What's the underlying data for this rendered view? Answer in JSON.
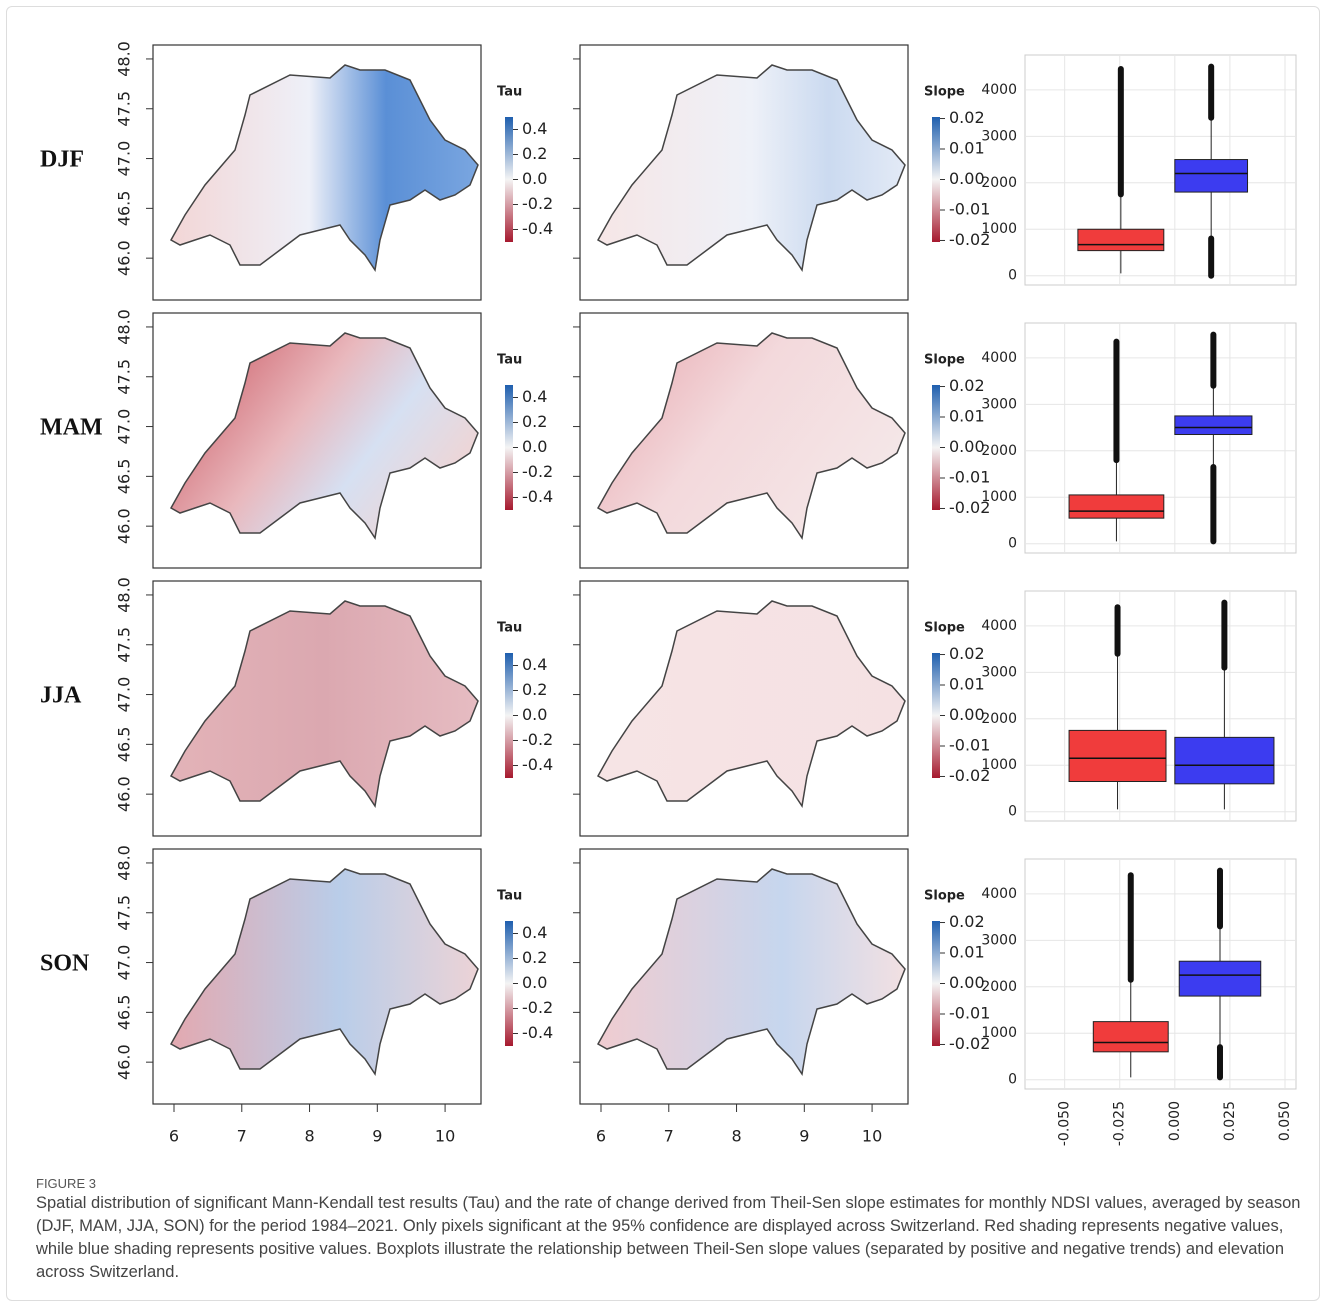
{
  "figure": {
    "rows": [
      {
        "season": "DJF",
        "boxplot": {
          "boxes": [
            {
              "color": "#f03c3c",
              "xrange": [
                -0.044,
                -0.005
              ],
              "q1": 540,
              "median": 670,
              "q3": 1000,
              "whisker": [
                50,
                1750
              ],
              "outliers": [
                [
                  1750,
                  4450
                ]
              ]
            },
            {
              "color": "#3c3cf0",
              "xrange": [
                0.0,
                0.033
              ],
              "q1": 1800,
              "median": 2200,
              "q3": 2500,
              "whisker": [
                800,
                3400
              ],
              "outliers": [
                [
                  0,
                  800
                ],
                [
                  3400,
                  4500
                ]
              ]
            }
          ]
        }
      },
      {
        "season": "MAM",
        "boxplot": {
          "boxes": [
            {
              "color": "#f03c3c",
              "xrange": [
                -0.048,
                -0.005
              ],
              "q1": 550,
              "median": 700,
              "q3": 1050,
              "whisker": [
                50,
                1800
              ],
              "outliers": [
                [
                  1800,
                  4350
                ]
              ]
            },
            {
              "color": "#3c3cf0",
              "xrange": [
                0.0,
                0.035
              ],
              "q1": 2350,
              "median": 2500,
              "q3": 2750,
              "whisker": [
                1650,
                3400
              ],
              "outliers": [
                [
                  50,
                  1650
                ],
                [
                  3400,
                  4500
                ]
              ]
            }
          ]
        }
      },
      {
        "season": "JJA",
        "boxplot": {
          "boxes": [
            {
              "color": "#f03c3c",
              "xrange": [
                -0.048,
                -0.004
              ],
              "q1": 650,
              "median": 1150,
              "q3": 1750,
              "whisker": [
                50,
                3400
              ],
              "outliers": [
                [
                  3400,
                  4400
                ]
              ]
            },
            {
              "color": "#3c3cf0",
              "xrange": [
                0.0,
                0.045
              ],
              "q1": 600,
              "median": 1000,
              "q3": 1600,
              "whisker": [
                50,
                3100
              ],
              "outliers": [
                [
                  3100,
                  4500
                ]
              ]
            }
          ]
        }
      },
      {
        "season": "SON",
        "boxplot": {
          "boxes": [
            {
              "color": "#f03c3c",
              "xrange": [
                -0.037,
                -0.003
              ],
              "q1": 600,
              "median": 800,
              "q3": 1250,
              "whisker": [
                50,
                2150
              ],
              "outliers": [
                [
                  2150,
                  4400
                ]
              ]
            },
            {
              "color": "#3c3cf0",
              "xrange": [
                0.002,
                0.039
              ],
              "q1": 1800,
              "median": 2250,
              "q3": 2550,
              "whisker": [
                700,
                3300
              ],
              "outliers": [
                [
                  50,
                  700
                ],
                [
                  3300,
                  4500
                ]
              ]
            }
          ]
        }
      }
    ],
    "map": {
      "lat_lim": [
        45.58,
        48.14
      ],
      "lat_ticks": [
        {
          "value": 46,
          "label": "46.0"
        },
        {
          "value": 46.5,
          "label": "46.5"
        },
        {
          "value": 47,
          "label": "47.0"
        },
        {
          "value": 47.5,
          "label": "47.5"
        },
        {
          "value": 48,
          "label": "48.0"
        }
      ],
      "lon_lim": [
        5.69,
        10.53
      ],
      "lon_ticks": [
        6,
        7,
        8,
        9,
        10
      ]
    },
    "colorbars": [
      {
        "title": "Tau",
        "lim": [
          -0.5,
          0.5
        ],
        "ticks": [
          0.4,
          0.2,
          {
            "value": 0,
            "label": "0.0"
          },
          -0.2,
          -0.4
        ]
      },
      {
        "title": "Slope",
        "lim": [
          -0.0205,
          0.0205
        ],
        "ticks": [
          0.02,
          0.01,
          {
            "value": 0,
            "label": "0.00"
          },
          -0.01,
          -0.02
        ]
      }
    ],
    "boxplot_axes": {
      "ylim": [
        -200,
        4750
      ],
      "yticks": [
        0,
        1000,
        2000,
        3000,
        4000
      ],
      "xlim": [
        -0.068,
        0.055
      ],
      "xticks": [
        {
          "value": -0.05,
          "label": "-0.050"
        },
        {
          "value": -0.025,
          "label": "-0.025"
        },
        {
          "value": 0,
          "label": "0.000"
        },
        {
          "value": 0.025,
          "label": "0.025"
        },
        {
          "value": 0.05,
          "label": "0.050"
        }
      ]
    }
  },
  "caption": {
    "label": "FIGURE 3",
    "text": "Spatial distribution of significant Mann-Kendall test results (Tau) and the rate of change derived from Theil-Sen slope estimates for monthly NDSI values, averaged by season (DJF, MAM, JJA, SON) for the period 1984–2021. Only pixels significant at the 95% confidence are displayed across Switzerland. Red shading represents negative values, while blue shading represents positive values. Boxplots illustrate the relationship between Theil-Sen slope values (separated by positive and negative trends) and elevation across Switzerland."
  }
}
